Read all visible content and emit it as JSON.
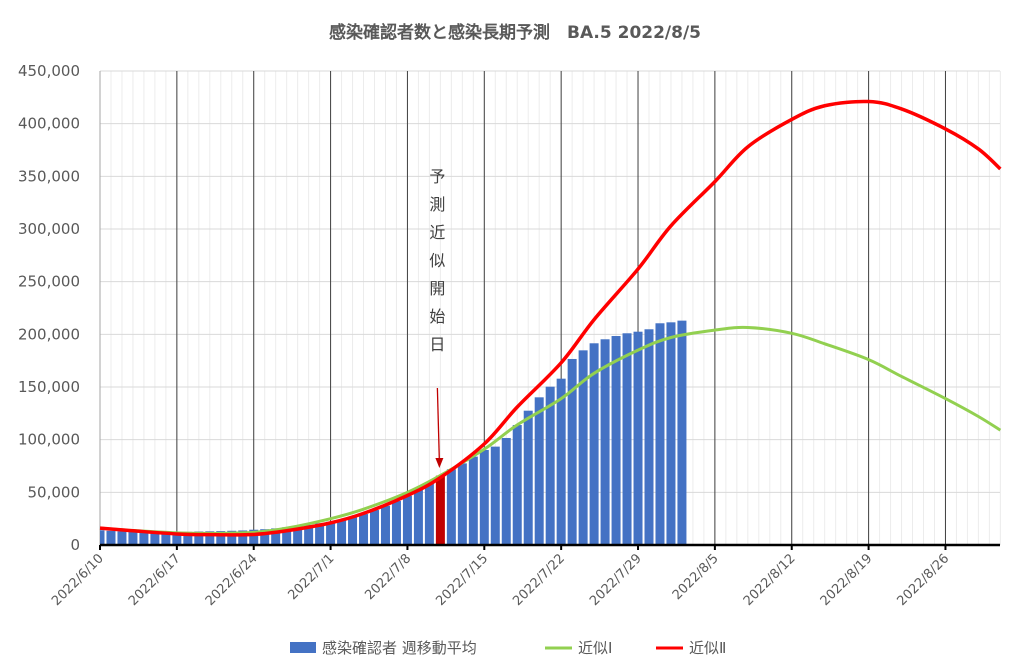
{
  "chart_data": {
    "type": "bar+line",
    "title": "感染確認者数と感染長期予測　BA.5  2022/8/5",
    "xlabel": "",
    "ylabel": "",
    "ylim": [
      0,
      450000
    ],
    "yticks": [
      "0",
      "50,000",
      "100,000",
      "150,000",
      "200,000",
      "250,000",
      "300,000",
      "350,000",
      "400,000",
      "450,000"
    ],
    "xlim": [
      "2022-06-10",
      "2022-08-31"
    ],
    "xtick_labels": [
      "2022/6/10",
      "2022/6/17",
      "2022/6/24",
      "2022/7/1",
      "2022/7/8",
      "2022/7/15",
      "2022/7/22",
      "2022/7/29",
      "2022/8/5",
      "2022/8/12",
      "2022/8/19",
      "2022/8/26"
    ],
    "grid": true,
    "legend_position": "bottom",
    "annotation": {
      "text": "予測近似開始日",
      "date": "2022-07-11"
    },
    "bars": {
      "name": "感染確認者 週移動平均",
      "color": "#4472C4",
      "highlight_color": "#C00000",
      "highlight_date": "2022-07-11",
      "start_date": "2022-06-10",
      "values": [
        14000,
        13500,
        13000,
        12500,
        12200,
        12000,
        12000,
        12300,
        12500,
        12800,
        13000,
        13200,
        13500,
        13800,
        14500,
        15000,
        15800,
        16800,
        18000,
        19000,
        20600,
        22000,
        23700,
        26300,
        29400,
        33200,
        37300,
        41800,
        46800,
        52200,
        58600,
        65800,
        71900,
        77500,
        83900,
        90200,
        93400,
        101600,
        113900,
        127500,
        140200,
        150300,
        157900,
        176600,
        184800,
        191500,
        195300,
        198400,
        201000,
        202500,
        204800,
        210500,
        211400,
        213000
      ]
    },
    "series": [
      {
        "name": "近似Ⅰ",
        "color": "#92D050",
        "x": [
          "2022-06-10",
          "2022-06-13",
          "2022-06-17",
          "2022-06-20",
          "2022-06-24",
          "2022-06-27",
          "2022-07-01",
          "2022-07-04",
          "2022-07-08",
          "2022-07-11",
          "2022-07-15",
          "2022-07-18",
          "2022-07-22",
          "2022-07-25",
          "2022-07-29",
          "2022-08-01",
          "2022-08-05",
          "2022-08-08",
          "2022-08-12",
          "2022-08-15",
          "2022-08-19",
          "2022-08-22",
          "2022-08-26",
          "2022-08-29",
          "2022-08-31"
        ],
        "values": [
          16000,
          13800,
          11500,
          11000,
          12000,
          16000,
          25000,
          34000,
          50000,
          66000,
          91000,
          114000,
          139000,
          163000,
          185000,
          197000,
          204000,
          206500,
          201000,
          191000,
          176000,
          160000,
          139000,
          122000,
          109000
        ]
      },
      {
        "name": "近似Ⅱ",
        "color": "#FF0000",
        "x": [
          "2022-06-10",
          "2022-06-13",
          "2022-06-17",
          "2022-06-20",
          "2022-06-24",
          "2022-06-27",
          "2022-07-01",
          "2022-07-04",
          "2022-07-08",
          "2022-07-11",
          "2022-07-15",
          "2022-07-18",
          "2022-07-22",
          "2022-07-25",
          "2022-07-29",
          "2022-08-01",
          "2022-08-05",
          "2022-08-08",
          "2022-08-12",
          "2022-08-15",
          "2022-08-19",
          "2022-08-22",
          "2022-08-26",
          "2022-08-29",
          "2022-08-31"
        ],
        "values": [
          16000,
          13500,
          10500,
          9800,
          10000,
          13500,
          21000,
          30000,
          47000,
          64000,
          96000,
          131000,
          173000,
          214000,
          262000,
          303000,
          345000,
          378000,
          404000,
          417000,
          421000,
          414000,
          395000,
          376000,
          357000
        ]
      }
    ]
  }
}
